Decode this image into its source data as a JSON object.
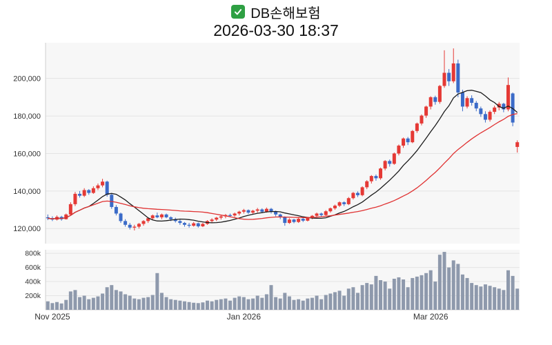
{
  "header": {
    "title": "DB손해보험",
    "subtitle": "2026-03-30 18:37"
  },
  "chart_data": {
    "type": "candlestick",
    "title": "DB손해보험",
    "timestamp": "2026-03-30 18:37",
    "x_axis": {
      "labels": [
        {
          "label": "Nov 2025",
          "index": 1
        },
        {
          "label": "Jan 2026",
          "index": 43
        },
        {
          "label": "Mar 2026",
          "index": 84
        }
      ]
    },
    "price_axis": {
      "ticks": [
        120000,
        140000,
        160000,
        180000,
        200000
      ],
      "min": 112000,
      "max": 219000
    },
    "volume_axis": {
      "ticks": [
        200000,
        400000,
        600000,
        800000
      ],
      "max": 850000,
      "unit": "k"
    },
    "overlays": [
      {
        "name": "ma-fast",
        "period": 10
      },
      {
        "name": "ma-slow",
        "period": 30
      }
    ],
    "colors": {
      "up": "#e53935",
      "down": "#3b6bc8",
      "volume": "#8e99ac",
      "ma_fast": "#1a1a1a",
      "ma_slow": "#e03131",
      "grid": "#e4e4e4",
      "plot_bg": "#f7f7f7",
      "axis_line": "#cfcfcf",
      "axis_text": "#333333"
    },
    "candles": [
      [
        126000,
        127500,
        124500,
        125500
      ],
      [
        125500,
        126500,
        124000,
        124800
      ],
      [
        124800,
        127000,
        124300,
        126200
      ],
      [
        126200,
        126800,
        124200,
        125000
      ],
      [
        125000,
        128000,
        124800,
        127500
      ],
      [
        127500,
        134000,
        127000,
        133000
      ],
      [
        133000,
        139500,
        132000,
        138500
      ],
      [
        138500,
        140000,
        136500,
        137500
      ],
      [
        137500,
        141500,
        136800,
        140500
      ],
      [
        140500,
        141000,
        138000,
        139000
      ],
      [
        139000,
        142500,
        138500,
        141500
      ],
      [
        141500,
        144000,
        140500,
        143000
      ],
      [
        143000,
        146500,
        142000,
        145000
      ],
      [
        145000,
        145500,
        137000,
        138000
      ],
      [
        138000,
        138500,
        130500,
        131500
      ],
      [
        131500,
        132500,
        127000,
        128000
      ],
      [
        128000,
        128500,
        123000,
        124000
      ],
      [
        124000,
        125000,
        121000,
        122000
      ],
      [
        122000,
        123000,
        119500,
        120500
      ],
      [
        120500,
        122000,
        119000,
        121000
      ],
      [
        121000,
        123000,
        120000,
        122500
      ],
      [
        122500,
        124500,
        121500,
        124000
      ],
      [
        124000,
        126000,
        123000,
        125500
      ],
      [
        125500,
        127500,
        124500,
        127000
      ],
      [
        127000,
        128500,
        125500,
        126000
      ],
      [
        126000,
        128000,
        125000,
        127500
      ],
      [
        127500,
        128000,
        125500,
        126000
      ],
      [
        126000,
        126500,
        124000,
        125000
      ],
      [
        125000,
        125800,
        123200,
        124000
      ],
      [
        124000,
        124800,
        122000,
        123000
      ],
      [
        123000,
        123500,
        121000,
        122000
      ],
      [
        122000,
        123000,
        120500,
        121500
      ],
      [
        121500,
        123500,
        121000,
        122800
      ],
      [
        122800,
        123200,
        120500,
        121200
      ],
      [
        121200,
        123000,
        120800,
        122500
      ],
      [
        122500,
        124500,
        122000,
        124000
      ],
      [
        124000,
        125500,
        123000,
        124800
      ],
      [
        124800,
        126200,
        124000,
        125800
      ],
      [
        125800,
        127000,
        124800,
        126500
      ],
      [
        126500,
        127800,
        125500,
        127200
      ],
      [
        127200,
        128000,
        126000,
        127000
      ],
      [
        127000,
        128500,
        126200,
        128000
      ],
      [
        128000,
        129500,
        127000,
        129000
      ],
      [
        129000,
        130500,
        128000,
        129800
      ],
      [
        129800,
        130200,
        127800,
        128500
      ],
      [
        128500,
        130000,
        127500,
        129500
      ],
      [
        129500,
        131000,
        128500,
        130200
      ],
      [
        130200,
        130800,
        128300,
        129000
      ],
      [
        129000,
        131200,
        128500,
        130500
      ],
      [
        130500,
        131000,
        128000,
        129000
      ],
      [
        129000,
        129500,
        126500,
        127500
      ],
      [
        127500,
        128000,
        125000,
        126000
      ],
      [
        126000,
        126500,
        121500,
        123000
      ],
      [
        123000,
        125500,
        122500,
        124800
      ],
      [
        124800,
        125200,
        122800,
        123500
      ],
      [
        123500,
        125800,
        123000,
        125200
      ],
      [
        125200,
        125600,
        123500,
        124200
      ],
      [
        124200,
        126200,
        123800,
        125800
      ],
      [
        125800,
        127200,
        125000,
        126800
      ],
      [
        126800,
        128500,
        126000,
        128000
      ],
      [
        128000,
        128500,
        126300,
        127200
      ],
      [
        127200,
        129800,
        126800,
        129200
      ],
      [
        129200,
        131200,
        128500,
        130800
      ],
      [
        130800,
        132800,
        130000,
        132200
      ],
      [
        132200,
        134500,
        131500,
        134000
      ],
      [
        134000,
        134500,
        132000,
        133000
      ],
      [
        133000,
        136800,
        132500,
        136200
      ],
      [
        136200,
        139500,
        135500,
        139000
      ],
      [
        139000,
        139800,
        136800,
        137800
      ],
      [
        137800,
        142500,
        137200,
        142000
      ],
      [
        142000,
        145800,
        141000,
        145200
      ],
      [
        145200,
        148500,
        144000,
        148000
      ],
      [
        148000,
        148800,
        145500,
        146800
      ],
      [
        146800,
        152500,
        146000,
        152000
      ],
      [
        152000,
        156500,
        151000,
        156000
      ],
      [
        156000,
        156800,
        153000,
        154500
      ],
      [
        154500,
        160500,
        154000,
        160000
      ],
      [
        160000,
        164800,
        159000,
        164200
      ],
      [
        164200,
        168500,
        163000,
        168000
      ],
      [
        168000,
        168800,
        164500,
        166000
      ],
      [
        166000,
        172500,
        165500,
        172000
      ],
      [
        172000,
        176500,
        171000,
        176000
      ],
      [
        176000,
        180800,
        175000,
        180200
      ],
      [
        180200,
        185500,
        179000,
        185000
      ],
      [
        185000,
        190500,
        183500,
        190000
      ],
      [
        190000,
        190800,
        186000,
        187500
      ],
      [
        187500,
        196500,
        186500,
        196000
      ],
      [
        196000,
        215000,
        195000,
        203000
      ],
      [
        203000,
        205000,
        196000,
        198500
      ],
      [
        198500,
        216000,
        197500,
        208000
      ],
      [
        208000,
        210000,
        190000,
        192500
      ],
      [
        192500,
        194000,
        182500,
        185000
      ],
      [
        185000,
        190500,
        184000,
        189500
      ],
      [
        189500,
        191000,
        185500,
        187000
      ],
      [
        187000,
        188000,
        182500,
        184000
      ],
      [
        184000,
        185000,
        179500,
        181000
      ],
      [
        181000,
        182500,
        176500,
        178000
      ],
      [
        178000,
        183000,
        177000,
        182200
      ],
      [
        182200,
        185500,
        181000,
        184500
      ],
      [
        184500,
        187500,
        183000,
        186500
      ],
      [
        186500,
        187000,
        182000,
        183500
      ],
      [
        183500,
        200500,
        182500,
        196500
      ],
      [
        192000,
        192500,
        174500,
        176500
      ],
      [
        163500,
        167000,
        160500,
        166000
      ]
    ],
    "volumes": [
      120000,
      95000,
      110000,
      90000,
      140000,
      260000,
      280000,
      180000,
      200000,
      150000,
      170000,
      190000,
      230000,
      320000,
      350000,
      280000,
      260000,
      220000,
      200000,
      160000,
      150000,
      170000,
      180000,
      210000,
      520000,
      240000,
      180000,
      150000,
      140000,
      130000,
      120000,
      110000,
      100000,
      95000,
      105000,
      130000,
      120000,
      140000,
      150000,
      160000,
      130000,
      170000,
      190000,
      180000,
      150000,
      160000,
      200000,
      170000,
      220000,
      350000,
      180000,
      160000,
      240000,
      190000,
      140000,
      150000,
      130000,
      160000,
      170000,
      200000,
      150000,
      210000,
      230000,
      250000,
      270000,
      200000,
      300000,
      320000,
      240000,
      350000,
      380000,
      360000,
      480000,
      420000,
      400000,
      300000,
      440000,
      460000,
      430000,
      320000,
      450000,
      470000,
      490000,
      520000,
      560000,
      400000,
      780000,
      820000,
      600000,
      700000,
      650000,
      500000,
      450000,
      380000,
      350000,
      330000,
      360000,
      340000,
      320000,
      300000,
      280000,
      560000,
      480000,
      300000
    ]
  }
}
